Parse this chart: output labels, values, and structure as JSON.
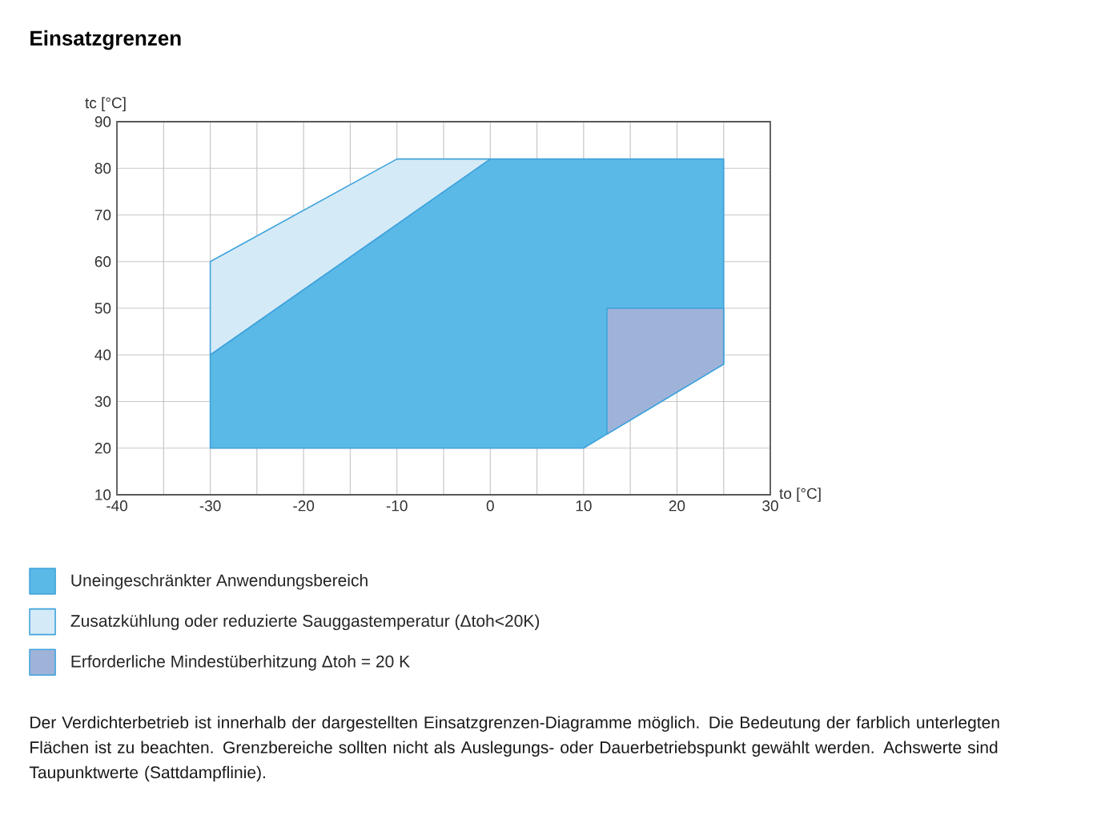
{
  "chart_data": {
    "type": "area",
    "title": "Einsatzgrenzen",
    "xlabel": "to [°C]",
    "ylabel": "tc [°C]",
    "series": [
      {
        "name": "Uneingeschränkter Anwendungsbereich",
        "color": "#5ab9e6",
        "x": [
          -30,
          0,
          25,
          25,
          10,
          -30
        ],
        "values": [
          40,
          82,
          82,
          38,
          20,
          20
        ]
      },
      {
        "name": "Zusatzkühlung oder reduzierte Sauggastemperatur (Δtoh<20K)",
        "color": "#d5eaf7",
        "x": [
          -30,
          -10,
          0,
          -30
        ],
        "values": [
          60,
          82,
          82,
          40
        ]
      },
      {
        "name": "Erforderliche Mindestüberhitzung Δtoh = 20 K",
        "color": "#9fb3d9",
        "x": [
          12.5,
          25,
          25,
          12.5
        ],
        "values": [
          50,
          50,
          38,
          23
        ]
      }
    ],
    "xlim": [
      -40,
      30
    ],
    "ylim": [
      10,
      90
    ],
    "xticks": [
      -40,
      {
        "value": -35,
        "label": null
      },
      -30,
      {
        "value": -25,
        "label": null
      },
      -20,
      {
        "value": -15,
        "label": null
      },
      -10,
      {
        "value": -5,
        "label": null
      },
      0,
      {
        "value": 5,
        "label": null
      },
      10,
      {
        "value": 15,
        "label": null
      },
      20,
      {
        "value": 25,
        "label": null
      },
      30
    ],
    "yticks": [
      10,
      20,
      30,
      40,
      50,
      60,
      70,
      80,
      90
    ],
    "grid": true,
    "legend": "bottom",
    "annotations": [
      "Der Verdichterbetrieb ist innerhalb der dargestellten Einsatzgrenzen-Diagramme möglich. Die Bedeutung der farblich unterlegten Flächen ist zu beachten. Grenzbereiche sollten nicht als Auslegungs- oder Dauerbetriebspunkt gewählt werden. Achswerte sind Taupunktwerte (Sattdampflinie)."
    ]
  }
}
